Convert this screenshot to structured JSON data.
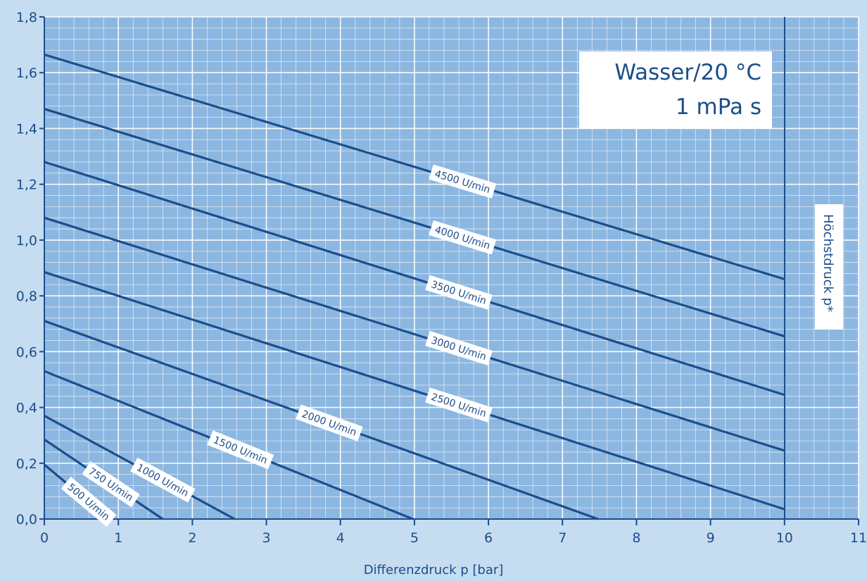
{
  "chart_data": {
    "type": "line",
    "title_lines": [
      "Wasser/20 °C",
      "1 mPa s"
    ],
    "xlabel": "Differenzdruck p [bar]",
    "ylabel": "",
    "xlim": [
      0,
      11
    ],
    "ylim": [
      0,
      1.8
    ],
    "x_ticks": [
      0,
      1,
      2,
      3,
      4,
      5,
      6,
      7,
      8,
      9,
      10,
      11
    ],
    "y_ticks": [
      0.0,
      0.2,
      0.4,
      0.6,
      0.8,
      1.0,
      1.2,
      1.4,
      1.6,
      1.8
    ],
    "y_tick_labels": [
      "0,0",
      "0,2",
      "0,4",
      "0,6",
      "0,8",
      "1,0",
      "1,2",
      "1,4",
      "1,6",
      "1,8"
    ],
    "grid": true,
    "max_pressure_x": 10,
    "max_pressure_label": "Höchstdruck p*",
    "series": [
      {
        "name": "500 U/min",
        "x": [
          0,
          0.88
        ],
        "y": [
          0.195,
          0.0
        ]
      },
      {
        "name": "750 U/min",
        "x": [
          0,
          1.6
        ],
        "y": [
          0.285,
          0.0
        ]
      },
      {
        "name": "1000 U/min",
        "x": [
          0,
          2.57
        ],
        "y": [
          0.37,
          0.0
        ]
      },
      {
        "name": "1500 U/min",
        "x": [
          0,
          4.98
        ],
        "y": [
          0.53,
          0.0
        ]
      },
      {
        "name": "2000 U/min",
        "x": [
          0,
          7.48
        ],
        "y": [
          0.71,
          0.0
        ]
      },
      {
        "name": "2500 U/min",
        "x": [
          0,
          10
        ],
        "y": [
          0.885,
          0.035
        ]
      },
      {
        "name": "3000 U/min",
        "x": [
          0,
          10
        ],
        "y": [
          1.08,
          0.245
        ]
      },
      {
        "name": "3500 U/min",
        "x": [
          0,
          10
        ],
        "y": [
          1.28,
          0.445
        ]
      },
      {
        "name": "4000 U/min",
        "x": [
          0,
          10
        ],
        "y": [
          1.47,
          0.655
        ]
      },
      {
        "name": "4500 U/min",
        "x": [
          0,
          10
        ],
        "y": [
          1.665,
          0.86
        ]
      }
    ],
    "series_label_positions_x": [
      0.6,
      0.9,
      1.6,
      2.65,
      3.85,
      5.6,
      5.6,
      5.6,
      5.65,
      5.65
    ]
  }
}
